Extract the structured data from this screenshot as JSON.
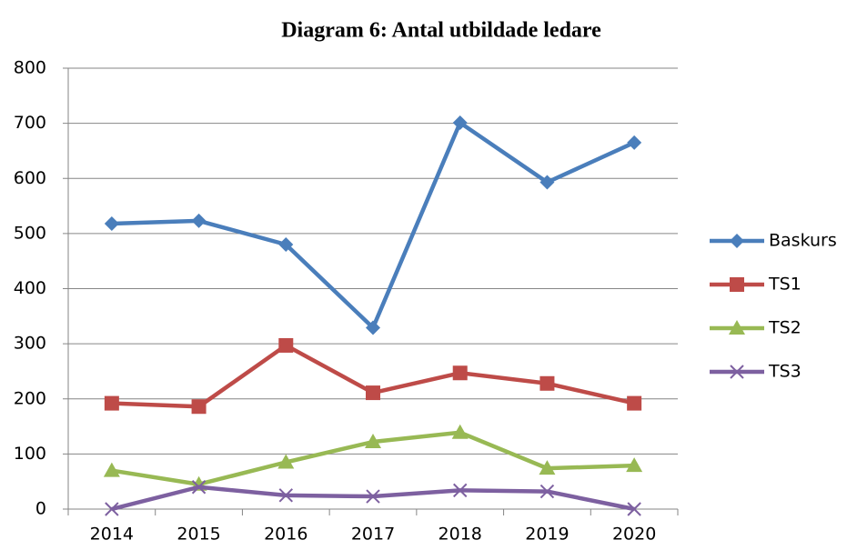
{
  "chart_data": {
    "type": "line",
    "title": "Diagram 6: Antal utbildade ledare",
    "categories": [
      "2014",
      "2015",
      "2016",
      "2017",
      "2018",
      "2019",
      "2020"
    ],
    "series": [
      {
        "name": "Baskurs",
        "color": "#4a7ebb",
        "marker": "diamond",
        "values": [
          518,
          523,
          480,
          329,
          701,
          593,
          665
        ]
      },
      {
        "name": "TS1",
        "color": "#be4b48",
        "marker": "square",
        "values": [
          192,
          186,
          297,
          211,
          247,
          228,
          192
        ]
      },
      {
        "name": "TS2",
        "color": "#98b954",
        "marker": "triangle",
        "values": [
          70,
          45,
          85,
          122,
          139,
          74,
          79
        ]
      },
      {
        "name": "TS3",
        "color": "#7d60a0",
        "marker": "x",
        "values": [
          0,
          40,
          25,
          23,
          34,
          32,
          0
        ]
      }
    ],
    "ylim": [
      0,
      800
    ],
    "yticks": [
      0,
      100,
      200,
      300,
      400,
      500,
      600,
      700,
      800
    ],
    "grid": true,
    "legend": "right"
  }
}
